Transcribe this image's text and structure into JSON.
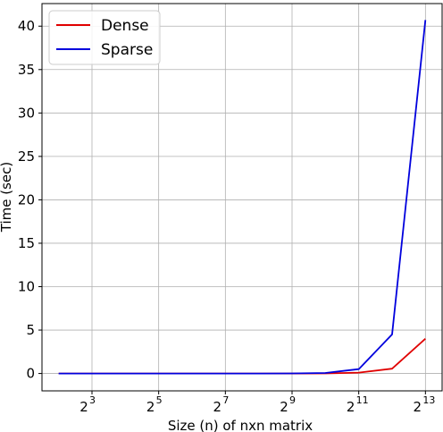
{
  "chart_data": {
    "type": "line",
    "xscale": "log2",
    "x": [
      4,
      8,
      16,
      32,
      64,
      128,
      256,
      512,
      1024,
      2048,
      4096,
      8192
    ],
    "xticks": [
      8,
      32,
      128,
      512,
      2048,
      8192
    ],
    "xtick_labels": [
      {
        "base": "2",
        "exp": "3"
      },
      {
        "base": "2",
        "exp": "5"
      },
      {
        "base": "2",
        "exp": "7"
      },
      {
        "base": "2",
        "exp": "9"
      },
      {
        "base": "2",
        "exp": "11"
      },
      {
        "base": "2",
        "exp": "13"
      }
    ],
    "xlim_log2": [
      1.5,
      13.5
    ],
    "yticks": [
      0,
      5,
      10,
      15,
      20,
      25,
      30,
      35,
      40
    ],
    "ylim": [
      -2.0,
      42.6
    ],
    "xlabel": "Size (n) of nxn matrix",
    "ylabel": "Time (sec)",
    "grid": true,
    "legend_position": "top-left",
    "series": [
      {
        "name": "Dense",
        "color": "#e00000",
        "values": [
          0.0,
          0.0,
          0.0,
          0.0,
          0.0,
          0.0,
          0.0,
          0.0,
          0.01,
          0.1,
          0.55,
          4.0
        ]
      },
      {
        "name": "Sparse",
        "color": "#0000dd",
        "values": [
          0.0,
          0.0,
          0.0,
          0.0,
          0.0,
          0.0,
          0.0,
          0.01,
          0.06,
          0.5,
          4.5,
          40.7
        ]
      }
    ]
  }
}
